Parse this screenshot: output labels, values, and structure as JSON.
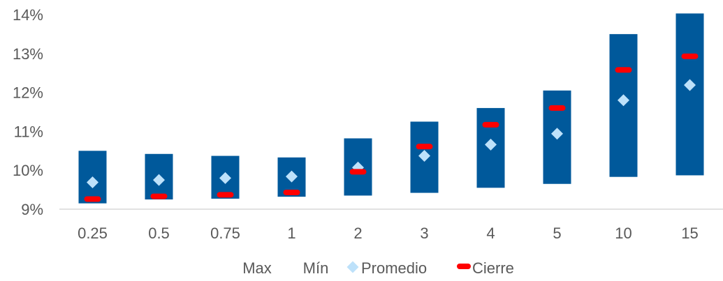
{
  "chart_data": {
    "type": "bar",
    "categories": [
      "0.25",
      "0.5",
      "0.75",
      "1",
      "2",
      "3",
      "4",
      "5",
      "10",
      "15"
    ],
    "series": [
      {
        "name": "Max",
        "values": [
          10.5,
          10.42,
          10.37,
          10.33,
          10.82,
          11.25,
          11.6,
          12.05,
          13.5,
          14.03
        ]
      },
      {
        "name": "Mín",
        "values": [
          9.15,
          9.25,
          9.27,
          9.32,
          9.35,
          9.42,
          9.55,
          9.65,
          9.83,
          9.87
        ]
      },
      {
        "name": "Promedio",
        "values": [
          9.69,
          9.75,
          9.8,
          9.84,
          10.07,
          10.37,
          10.66,
          10.94,
          11.8,
          12.19
        ]
      },
      {
        "name": "Cierre",
        "values": [
          9.26,
          9.33,
          9.37,
          9.43,
          9.96,
          10.61,
          11.17,
          11.6,
          12.58,
          12.93
        ]
      }
    ],
    "y_ticks": [
      "9%",
      "10%",
      "11%",
      "12%",
      "13%",
      "14%"
    ],
    "ylim": [
      9,
      14
    ],
    "grid": false,
    "legend_position": "bottom",
    "colors": {
      "range_bar": "#00599b",
      "promedio": "#bde1fa",
      "cierre": "#ff0000",
      "text": "#595959",
      "axis": "#d9d9d9"
    }
  }
}
